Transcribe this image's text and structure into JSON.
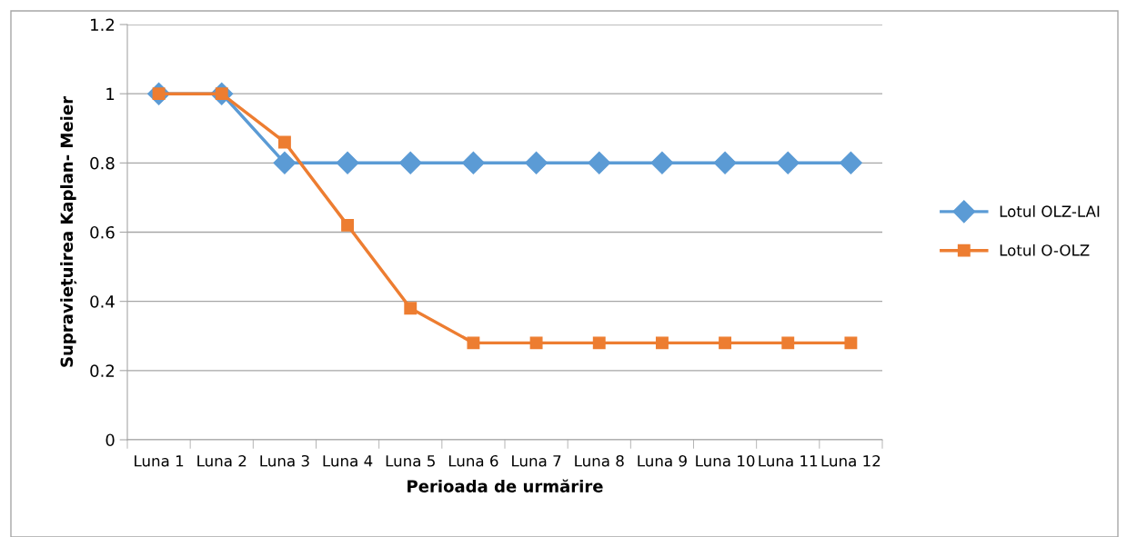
{
  "chart_data": {
    "type": "line",
    "xlabel": "Perioada de urmărire",
    "ylabel": "Supraviețuirea Kaplan- Meier",
    "categories": [
      "Luna 1",
      "Luna 2",
      "Luna 3",
      "Luna 4",
      "Luna 5",
      "Luna 6",
      "Luna 7",
      "Luna 8",
      "Luna 9",
      "Luna 10",
      "Luna 11",
      "Luna 12"
    ],
    "series": [
      {
        "name": "Lotul OLZ-LAI",
        "color": "#5b9bd5",
        "marker": "diamond",
        "values": [
          1,
          1,
          0.8,
          0.8,
          0.8,
          0.8,
          0.8,
          0.8,
          0.8,
          0.8,
          0.8,
          0.8
        ]
      },
      {
        "name": "Lotul O-OLZ",
        "color": "#ed7d31",
        "marker": "square",
        "values": [
          1,
          1,
          0.86,
          0.62,
          0.38,
          0.28,
          0.28,
          0.28,
          0.28,
          0.28,
          0.28,
          0.28
        ]
      }
    ],
    "ylim": [
      0,
      1.2
    ],
    "yticks": [
      0,
      0.2,
      0.4,
      0.6,
      0.8,
      1,
      1.2
    ],
    "grid": "y",
    "legend": "right"
  }
}
